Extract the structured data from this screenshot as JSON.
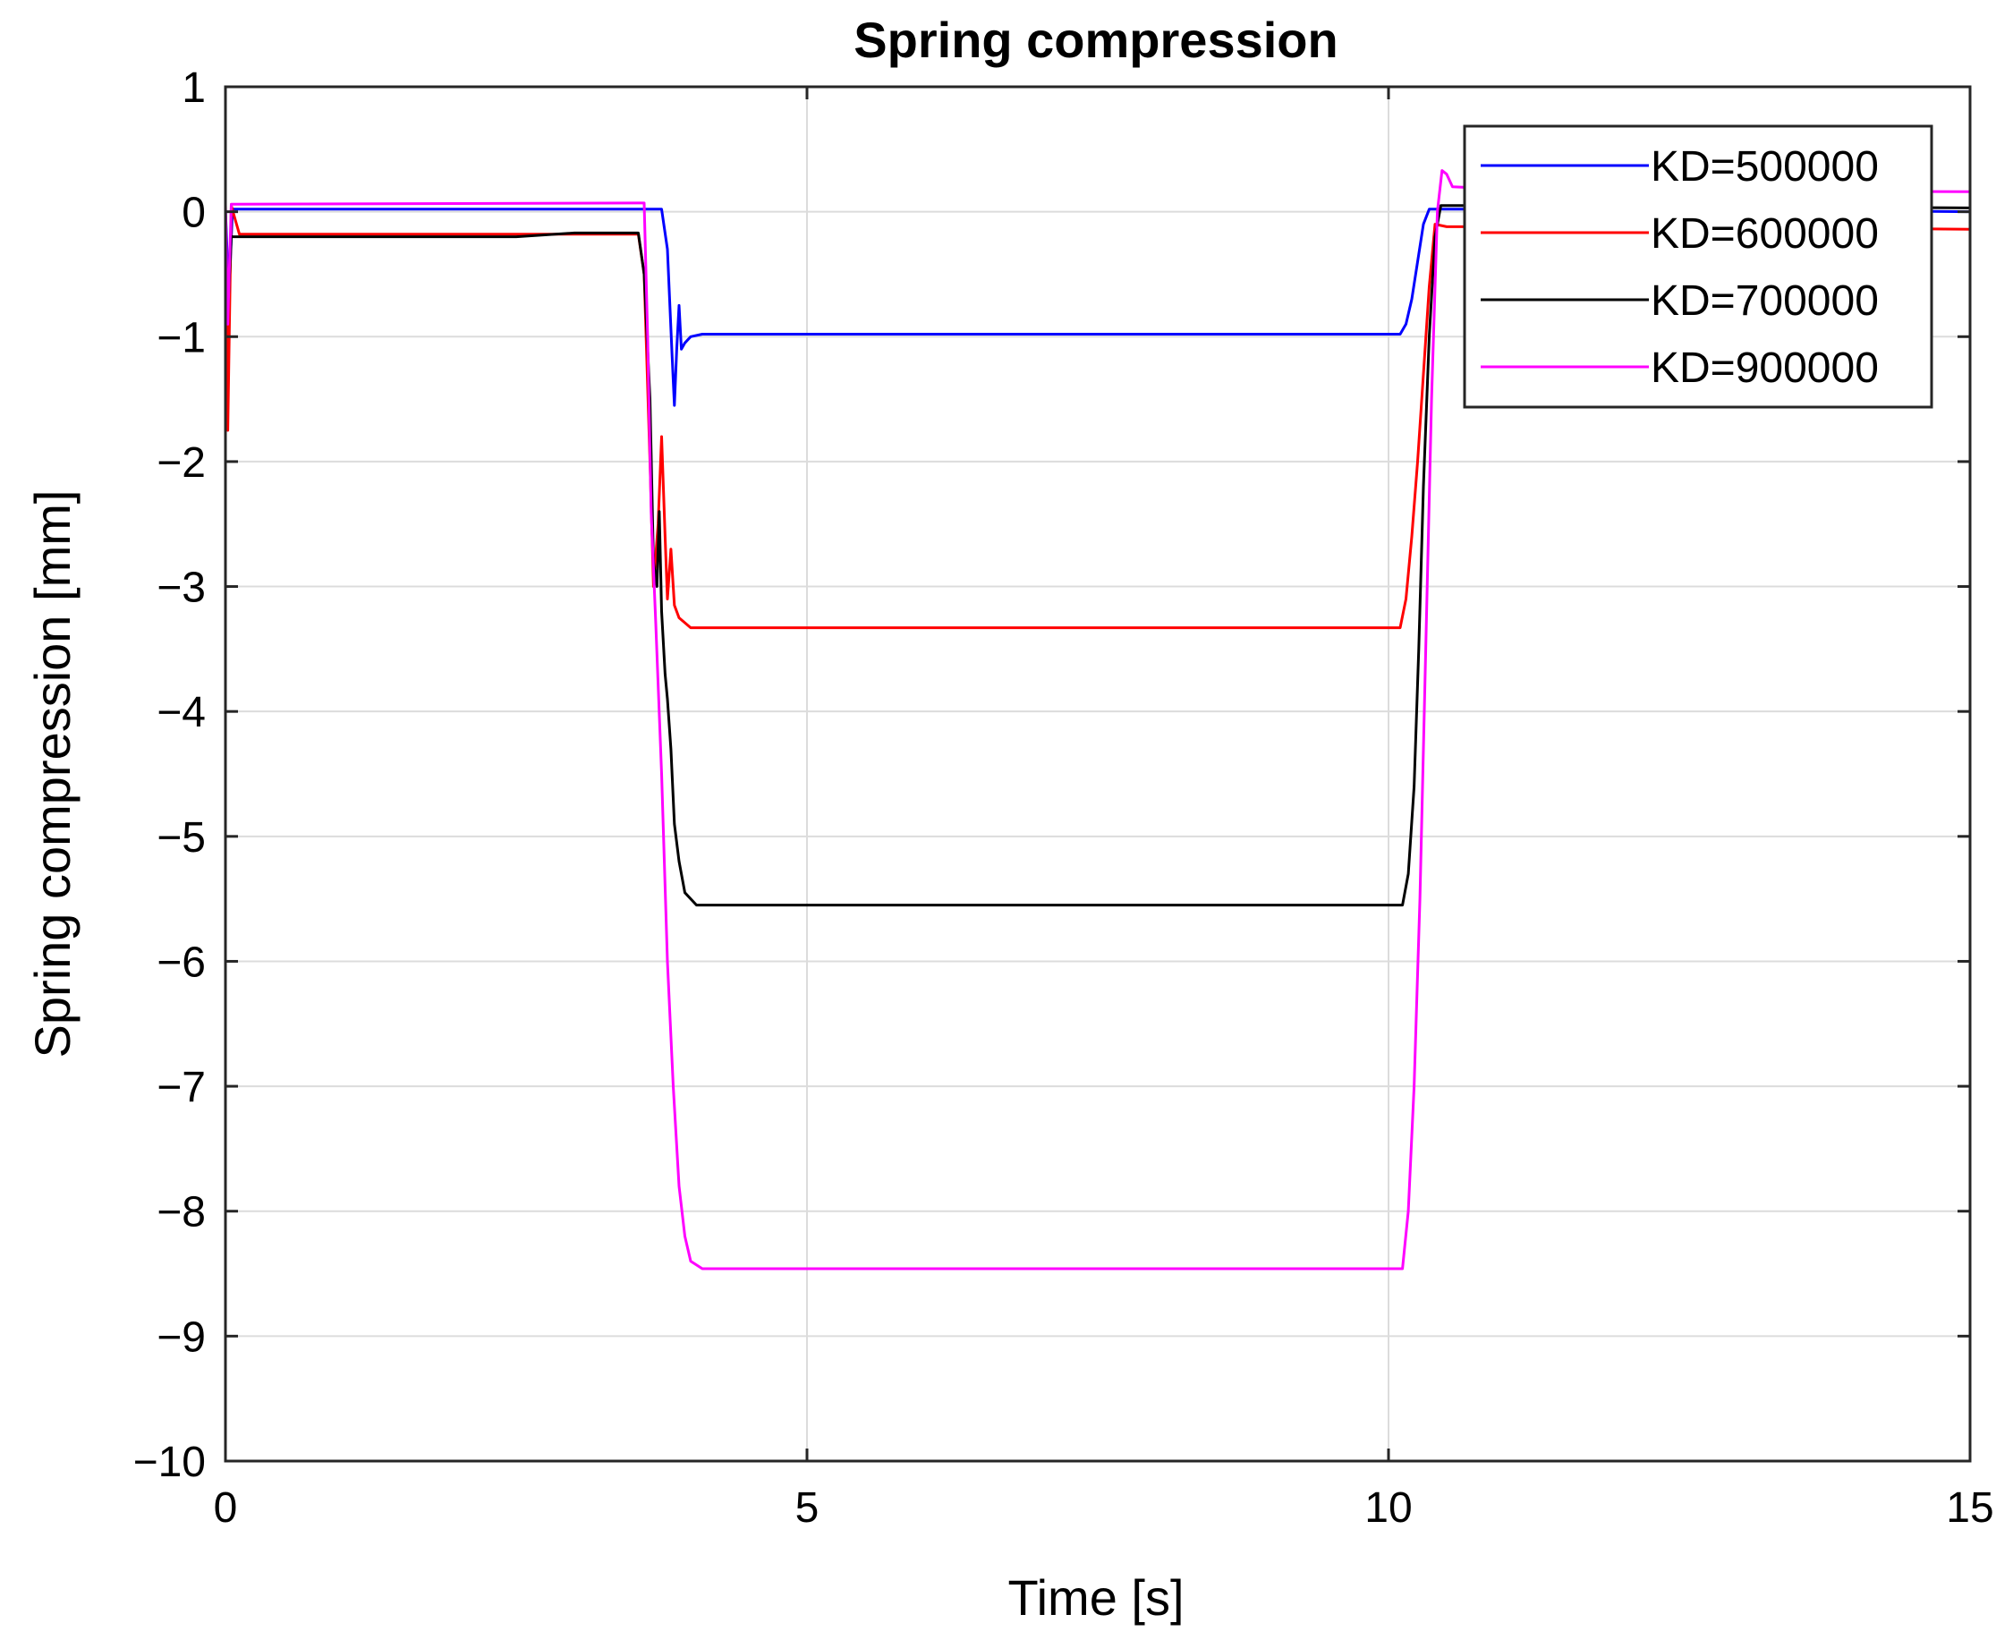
{
  "chart_data": {
    "type": "line",
    "title": "Spring compression",
    "xlabel": "Time [s]",
    "ylabel": "Spring compression [mm]",
    "xlim": [
      0,
      15
    ],
    "ylim": [
      -10,
      1
    ],
    "xticks": [
      0,
      5,
      10,
      15
    ],
    "yticks": [
      -10,
      -9,
      -8,
      -7,
      -6,
      -5,
      -4,
      -3,
      -2,
      -1,
      0,
      1
    ],
    "xtick_labels": [
      "0",
      "5",
      "10",
      "15"
    ],
    "ytick_labels": [
      "−10",
      "−9",
      "−8",
      "−7",
      "−6",
      "−5",
      "−4",
      "−3",
      "−2",
      "−1",
      "0",
      "1"
    ],
    "grid": true,
    "legend_position": "top-right",
    "series": [
      {
        "name": "KD=500000",
        "color": "#0000ff",
        "points": [
          [
            0,
            0.02
          ],
          [
            0.03,
            -0.7
          ],
          [
            0.06,
            0.02
          ],
          [
            3.55,
            0.02
          ],
          [
            3.6,
            0.02
          ],
          [
            3.75,
            0.02
          ],
          [
            3.8,
            -0.3
          ],
          [
            3.84,
            -1.15
          ],
          [
            3.86,
            -1.55
          ],
          [
            3.88,
            -1.1
          ],
          [
            3.9,
            -0.75
          ],
          [
            3.92,
            -1.1
          ],
          [
            3.95,
            -1.05
          ],
          [
            4.0,
            -1.0
          ],
          [
            4.1,
            -0.98
          ],
          [
            6.0,
            -0.98
          ],
          [
            8.0,
            -0.98
          ],
          [
            10.1,
            -0.98
          ],
          [
            10.15,
            -0.9
          ],
          [
            10.2,
            -0.7
          ],
          [
            10.25,
            -0.4
          ],
          [
            10.3,
            -0.1
          ],
          [
            10.35,
            0.02
          ],
          [
            10.5,
            0.02
          ],
          [
            12.0,
            0.02
          ],
          [
            15.0,
            0.0
          ]
        ]
      },
      {
        "name": "KD=600000",
        "color": "#ff0000",
        "points": [
          [
            0,
            0.05
          ],
          [
            0.02,
            -1.75
          ],
          [
            0.05,
            0.05
          ],
          [
            0.08,
            -0.05
          ],
          [
            0.12,
            -0.18
          ],
          [
            3.55,
            -0.18
          ],
          [
            3.6,
            -0.5
          ],
          [
            3.65,
            -2.0
          ],
          [
            3.68,
            -3.0
          ],
          [
            3.72,
            -2.5
          ],
          [
            3.75,
            -1.8
          ],
          [
            3.78,
            -2.6
          ],
          [
            3.8,
            -3.1
          ],
          [
            3.83,
            -2.7
          ],
          [
            3.86,
            -3.15
          ],
          [
            3.9,
            -3.25
          ],
          [
            4.0,
            -3.33
          ],
          [
            6.0,
            -3.33
          ],
          [
            8.0,
            -3.33
          ],
          [
            10.1,
            -3.33
          ],
          [
            10.15,
            -3.1
          ],
          [
            10.2,
            -2.6
          ],
          [
            10.25,
            -2.0
          ],
          [
            10.3,
            -1.3
          ],
          [
            10.35,
            -0.6
          ],
          [
            10.4,
            -0.1
          ],
          [
            10.5,
            -0.12
          ],
          [
            12.0,
            -0.12
          ],
          [
            15.0,
            -0.14
          ]
        ]
      },
      {
        "name": "KD=700000",
        "color": "#000000",
        "points": [
          [
            0,
            -0.15
          ],
          [
            0.02,
            -0.8
          ],
          [
            0.05,
            -0.2
          ],
          [
            2.5,
            -0.2
          ],
          [
            3.0,
            -0.17
          ],
          [
            3.55,
            -0.17
          ],
          [
            3.6,
            -0.5
          ],
          [
            3.65,
            -1.5
          ],
          [
            3.68,
            -2.8
          ],
          [
            3.71,
            -3.0
          ],
          [
            3.73,
            -2.4
          ],
          [
            3.75,
            -3.2
          ],
          [
            3.78,
            -3.7
          ],
          [
            3.8,
            -3.9
          ],
          [
            3.83,
            -4.3
          ],
          [
            3.86,
            -4.9
          ],
          [
            3.9,
            -5.2
          ],
          [
            3.95,
            -5.45
          ],
          [
            4.05,
            -5.55
          ],
          [
            6.0,
            -5.55
          ],
          [
            8.0,
            -5.55
          ],
          [
            10.12,
            -5.55
          ],
          [
            10.17,
            -5.3
          ],
          [
            10.22,
            -4.6
          ],
          [
            10.26,
            -3.5
          ],
          [
            10.3,
            -2.2
          ],
          [
            10.35,
            -1.0
          ],
          [
            10.4,
            -0.2
          ],
          [
            10.45,
            0.05
          ],
          [
            12.0,
            0.05
          ],
          [
            15.0,
            0.03
          ]
        ]
      },
      {
        "name": "KD=900000",
        "color": "#ff00ff",
        "points": [
          [
            0,
            0.06
          ],
          [
            0.02,
            -0.9
          ],
          [
            0.05,
            0.06
          ],
          [
            3.55,
            0.07
          ],
          [
            3.6,
            0.07
          ],
          [
            3.63,
            -1.0
          ],
          [
            3.66,
            -2.4
          ],
          [
            3.7,
            -3.3
          ],
          [
            3.75,
            -4.5
          ],
          [
            3.8,
            -6.0
          ],
          [
            3.85,
            -7.0
          ],
          [
            3.9,
            -7.8
          ],
          [
            3.95,
            -8.2
          ],
          [
            4.0,
            -8.4
          ],
          [
            4.1,
            -8.46
          ],
          [
            6.0,
            -8.46
          ],
          [
            8.0,
            -8.46
          ],
          [
            10.12,
            -8.46
          ],
          [
            10.17,
            -8.0
          ],
          [
            10.22,
            -7.0
          ],
          [
            10.27,
            -5.5
          ],
          [
            10.32,
            -3.5
          ],
          [
            10.37,
            -1.5
          ],
          [
            10.42,
            0.0
          ],
          [
            10.46,
            0.33
          ],
          [
            10.5,
            0.3
          ],
          [
            10.55,
            0.2
          ],
          [
            11.0,
            0.18
          ],
          [
            15.0,
            0.16
          ]
        ]
      }
    ]
  }
}
